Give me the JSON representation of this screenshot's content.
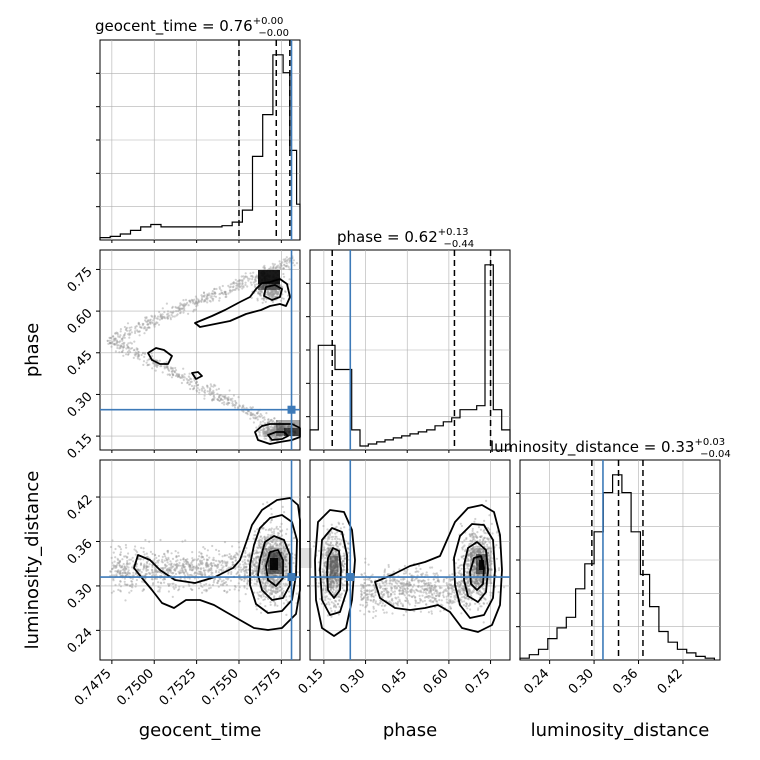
{
  "chart_data": {
    "type": "corner",
    "parameters": [
      "geocent_time",
      "phase",
      "luminosity_distance"
    ],
    "colors": {
      "truth": "#3d7ab8",
      "hist": "#000000",
      "quantile": "#000000",
      "grid": "#b0b0b0",
      "samples": "#9a9a9a"
    },
    "titles": [
      {
        "param": "geocent_time",
        "base": "geocent_time = 0.76",
        "plus": "+0.00",
        "minus": "−0.00"
      },
      {
        "param": "phase",
        "base": "phase = 0.62",
        "plus": "+0.13",
        "minus": "−0.44"
      },
      {
        "param": "luminosity_distance",
        "base": "luminosity_distance = 0.33",
        "plus": "+0.03",
        "minus": "−0.04"
      }
    ],
    "axes": {
      "geocent_time": {
        "range": [
          0.7468,
          0.7586
        ],
        "ticks": [
          0.7475,
          0.75,
          0.7525,
          0.755,
          0.7575
        ],
        "tick_labels": [
          "0.7475",
          "0.7500",
          "0.7525",
          "0.7550",
          "0.7575"
        ]
      },
      "phase": {
        "range": [
          0.1,
          0.82
        ],
        "ticks": [
          0.15,
          0.3,
          0.45,
          0.6,
          0.75
        ],
        "tick_labels": [
          "0.15",
          "0.30",
          "0.45",
          "0.60",
          "0.75"
        ]
      },
      "luminosity_distance": {
        "range": [
          0.2,
          0.47
        ],
        "ticks": [
          0.24,
          0.3,
          0.36,
          0.42
        ],
        "tick_labels": [
          "0.24",
          "0.30",
          "0.36",
          "0.42"
        ]
      }
    },
    "truths": {
      "geocent_time": 0.7581,
      "phase": 0.245,
      "luminosity_distance": 0.312
    },
    "quantiles": {
      "geocent_time": [
        0.755,
        0.7572,
        0.758
      ],
      "phase": [
        0.18,
        0.62,
        0.75
      ],
      "luminosity_distance": [
        0.297,
        0.333,
        0.366
      ]
    },
    "histograms": {
      "geocent_time": {
        "edges": [
          0.7468,
          0.7474,
          0.748,
          0.7486,
          0.7492,
          0.7498,
          0.7504,
          0.751,
          0.7516,
          0.7522,
          0.7528,
          0.7534,
          0.754,
          0.7546,
          0.7552,
          0.7558,
          0.7564,
          0.757,
          0.7576,
          0.758,
          0.7584,
          0.7586
        ],
        "counts": [
          0.4,
          0.6,
          1.0,
          1.6,
          2.2,
          2.6,
          2.2,
          2.2,
          2.2,
          2.2,
          2.2,
          2.2,
          2.4,
          3.0,
          5.0,
          14.0,
          21.0,
          31.0,
          28.0,
          15.0,
          6.0
        ]
      },
      "phase": {
        "edges": [
          0.1,
          0.13,
          0.16,
          0.19,
          0.22,
          0.25,
          0.28,
          0.31,
          0.34,
          0.37,
          0.4,
          0.43,
          0.46,
          0.49,
          0.52,
          0.55,
          0.58,
          0.61,
          0.64,
          0.67,
          0.7,
          0.73,
          0.76,
          0.79,
          0.82
        ],
        "counts": [
          5,
          26,
          26,
          20,
          20,
          5,
          1,
          1.5,
          2,
          2.5,
          3,
          3.5,
          4,
          4.5,
          5,
          6,
          7,
          8,
          10,
          10,
          11,
          46,
          10,
          5
        ]
      },
      "luminosity_distance": {
        "edges": [
          0.2,
          0.2125,
          0.225,
          0.2375,
          0.25,
          0.2625,
          0.275,
          0.2875,
          0.3,
          0.3125,
          0.325,
          0.3375,
          0.35,
          0.3625,
          0.375,
          0.3875,
          0.4,
          0.4125,
          0.425,
          0.4375,
          0.45,
          0.4625
        ],
        "counts": [
          0.5,
          1.5,
          3,
          6,
          9,
          12,
          20,
          27,
          36,
          47,
          52,
          47,
          36,
          24,
          15,
          8,
          5,
          3,
          2,
          1,
          0.5
        ]
      }
    }
  }
}
